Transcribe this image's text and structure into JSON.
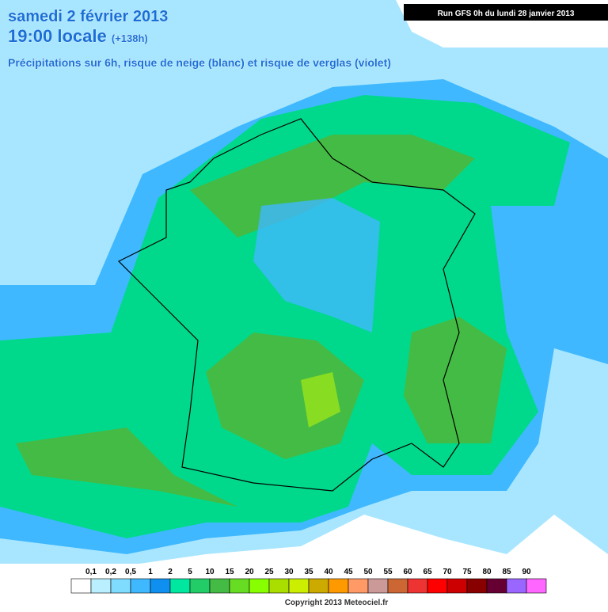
{
  "header": {
    "date": "samedi 2 février 2013",
    "time": "19:00 locale",
    "lead": "(+138h)",
    "subtitle": "Précipitations sur 6h, risque de neige (blanc) et risque de verglas (violet)",
    "run": "Run GFS 0h du lundi 28 janvier 2013"
  },
  "legend": {
    "labels": [
      "0,1",
      "0,2",
      "0,5",
      "1",
      "2",
      "5",
      "10",
      "15",
      "20",
      "25",
      "30",
      "35",
      "40",
      "45",
      "50",
      "55",
      "60",
      "65",
      "70",
      "75",
      "80",
      "85",
      "90"
    ],
    "colors": [
      "#ffffff",
      "#b9efff",
      "#7fdcff",
      "#3fb8ff",
      "#0f90f0",
      "#00e8a0",
      "#22cc66",
      "#44bb44",
      "#66dd22",
      "#88ff00",
      "#aadd00",
      "#ccee00",
      "#ccaa00",
      "#ff9900",
      "#ff9966",
      "#cc9999",
      "#cc6633",
      "#ee3333",
      "#ff0000",
      "#cc0000",
      "#880000",
      "#660033",
      "#9966ff",
      "#ff66ff"
    ]
  },
  "footer": {
    "copyright": "Copyright 2013 Meteociel.fr"
  }
}
